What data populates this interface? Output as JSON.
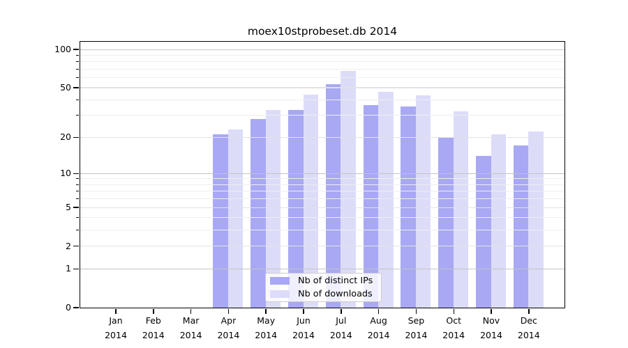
{
  "chart_data": {
    "type": "bar",
    "title": "moex10stprobeset.db 2014",
    "year": "2014",
    "months": [
      "Jan",
      "Feb",
      "Mar",
      "Apr",
      "May",
      "Jun",
      "Jul",
      "Aug",
      "Sep",
      "Oct",
      "Nov",
      "Dec"
    ],
    "series": [
      {
        "name": "Nb of distinct IPs",
        "key": "distinct-ips",
        "color": "#a8a8f4",
        "values": [
          0,
          0,
          0,
          21,
          28,
          33,
          53,
          36,
          35,
          20,
          14,
          17
        ]
      },
      {
        "name": "Nb of downloads",
        "key": "downloads",
        "color": "#dcdcf9",
        "values": [
          0,
          0,
          0,
          23,
          33,
          44,
          67,
          46,
          43,
          32,
          21,
          22
        ]
      }
    ],
    "y_axis": {
      "scale": "log1p",
      "major_ticks": [
        0,
        1,
        2,
        5,
        10,
        20,
        50,
        100
      ],
      "decade_gridlines": [
        1,
        10,
        100
      ],
      "mid_gridlines": [
        2,
        5,
        20,
        50
      ],
      "minor_gridlines": [
        3,
        4,
        6,
        7,
        8,
        9,
        30,
        40,
        60,
        70,
        80,
        90
      ]
    },
    "x_axis": {
      "tick_label_lines": 2
    },
    "legend_position": "bottom-center",
    "colors": {
      "decade_grid": "#c4c4c4",
      "mid_grid": "#e2e2e2",
      "minor_grid": "#eeeeee",
      "spine": "#000000",
      "background": "#ffffff"
    }
  }
}
